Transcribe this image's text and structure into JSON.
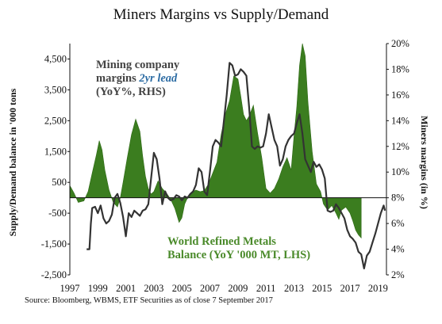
{
  "title": "Miners Margins vs Supply/Demand",
  "source": "Source: Bloomberg, WBMS, ETF Securities as of close 7 September 2017",
  "chart_data": {
    "type": "area",
    "title": "Miners Margins vs Supply/Demand",
    "x_ticks": [
      "1997",
      "1999",
      "2001",
      "2003",
      "2005",
      "2007",
      "2009",
      "2011",
      "2013",
      "2015",
      "2017",
      "2019"
    ],
    "xlim": [
      1997.0,
      2019.6
    ],
    "y_left": {
      "label": "Supply/Demand balance in '000 tons",
      "ticks": [
        "4,500",
        "3,500",
        "2,500",
        "1,500",
        "500",
        "-500",
        "-1,500",
        "-2,500"
      ],
      "ylim": [
        -2500,
        5000
      ]
    },
    "y_right": {
      "label": "Miners margins (in %)",
      "ticks": [
        "20%",
        "18%",
        "16%",
        "14%",
        "12%",
        "10%",
        "8%",
        "6%",
        "4%",
        "2%"
      ],
      "ylim": [
        2,
        20
      ]
    },
    "annotations": {
      "margins_line1": "Mining company",
      "margins_line2a": "margins ",
      "margins_line2b": "2yr lead",
      "margins_line3": "(YoY%, RHS)",
      "balance_line1": "World Refined Metals",
      "balance_line2": "Balance (YoY '000 MT, LHS)"
    },
    "colors": {
      "area": "#3b7d1f",
      "line": "#333333",
      "lead_text": "#2e6da4",
      "balance_text": "#4a8a2a"
    },
    "series": [
      {
        "axis": "left",
        "type": "area",
        "x": [
          1997.0,
          1997.3,
          1997.6,
          1998.0,
          1998.3,
          1998.6,
          1998.9,
          1999.1,
          1999.3,
          1999.5,
          1999.8,
          2000.1,
          2000.4,
          2000.6,
          2000.8,
          2001.1,
          2001.4,
          2001.7,
          2002.0,
          2002.2,
          2002.4,
          2002.6,
          2002.8,
          2003.0,
          2003.3,
          2003.6,
          2003.9,
          2004.2,
          2004.5,
          2004.8,
          2005.0,
          2005.2,
          2005.4,
          2005.7,
          2006.0,
          2006.3,
          2006.6,
          2006.9,
          2007.2,
          2007.5,
          2007.8,
          2008.1,
          2008.4,
          2008.7,
          2009.0,
          2009.2,
          2009.4,
          2009.6,
          2009.8,
          2010.1,
          2010.4,
          2010.7,
          2011.0,
          2011.3,
          2011.6,
          2011.9,
          2012.2,
          2012.5,
          2012.8,
          2013.0,
          2013.2,
          2013.4,
          2013.6,
          2013.8,
          2014.0,
          2014.3,
          2014.6,
          2014.9,
          2015.1,
          2015.4,
          2015.7,
          2016.0,
          2016.2,
          2016.4,
          2016.7,
          2017.0,
          2017.2,
          2017.4,
          2017.6,
          2017.8
        ],
        "y": [
          400,
          150,
          -150,
          -100,
          200,
          800,
          1400,
          1850,
          1550,
          900,
          250,
          -150,
          -300,
          0,
          500,
          1300,
          2050,
          2550,
          2150,
          1350,
          700,
          300,
          120,
          200,
          550,
          300,
          150,
          -50,
          -350,
          -800,
          -650,
          -200,
          0,
          180,
          250,
          200,
          230,
          450,
          800,
          1150,
          2050,
          2700,
          3150,
          3950,
          3850,
          3300,
          2700,
          2500,
          2650,
          3000,
          2100,
          1300,
          300,
          150,
          300,
          600,
          1000,
          1300,
          900,
          2000,
          2950,
          4300,
          5000,
          4600,
          3100,
          1500,
          450,
          200,
          -200,
          -400,
          -250,
          -500,
          -700,
          -400,
          -300,
          -500,
          -750,
          -1050,
          -1200,
          -1300
        ]
      },
      {
        "axis": "right",
        "type": "line",
        "x": [
          1998.2,
          1998.4,
          1998.5,
          1998.6,
          1998.8,
          1999.0,
          1999.2,
          1999.4,
          1999.6,
          1999.8,
          2000.0,
          2000.2,
          2000.4,
          2000.6,
          2000.8,
          2001.0,
          2001.2,
          2001.4,
          2001.6,
          2001.8,
          2002.0,
          2002.2,
          2002.4,
          2002.6,
          2002.8,
          2003.0,
          2003.2,
          2003.4,
          2003.6,
          2003.8,
          2004.0,
          2004.2,
          2004.4,
          2004.6,
          2004.8,
          2005.0,
          2005.2,
          2005.4,
          2005.6,
          2005.8,
          2006.0,
          2006.2,
          2006.4,
          2006.6,
          2006.8,
          2007.0,
          2007.2,
          2007.4,
          2007.6,
          2007.8,
          2008.0,
          2008.2,
          2008.4,
          2008.6,
          2008.8,
          2009.0,
          2009.2,
          2009.4,
          2009.6,
          2009.8,
          2010.0,
          2010.2,
          2010.4,
          2010.6,
          2010.8,
          2011.0,
          2011.2,
          2011.4,
          2011.6,
          2011.8,
          2012.0,
          2012.2,
          2012.4,
          2012.6,
          2012.8,
          2013.0,
          2013.2,
          2013.4,
          2013.6,
          2013.8,
          2014.0,
          2014.2,
          2014.4,
          2014.6,
          2014.8,
          2015.0,
          2015.2,
          2015.4,
          2015.6,
          2015.8,
          2016.0,
          2016.2,
          2016.4,
          2016.6,
          2016.8,
          2017.0,
          2017.2,
          2017.4,
          2017.6,
          2017.8,
          2018.0,
          2018.2,
          2018.4,
          2018.6,
          2018.8,
          2019.0,
          2019.2,
          2019.4,
          2019.5
        ],
        "y": [
          4.0,
          4.0,
          6.0,
          7.2,
          7.3,
          6.8,
          7.4,
          6.4,
          6.0,
          6.2,
          6.7,
          8.0,
          8.3,
          7.6,
          6.5,
          5.0,
          6.8,
          6.5,
          7.0,
          6.8,
          6.6,
          7.0,
          7.1,
          7.5,
          9.5,
          11.5,
          11.0,
          9.5,
          7.5,
          8.5,
          8.0,
          7.8,
          7.9,
          8.2,
          8.1,
          7.8,
          8.1,
          8.0,
          8.3,
          8.5,
          9.0,
          10.3,
          10.0,
          8.5,
          8.2,
          10.0,
          12.0,
          12.5,
          12.3,
          12.0,
          14.0,
          16.0,
          18.5,
          18.3,
          17.5,
          17.6,
          18.0,
          17.8,
          17.5,
          15.0,
          12.0,
          11.8,
          12.0,
          11.9,
          12.0,
          13.0,
          14.5,
          13.5,
          12.5,
          12.0,
          10.5,
          11.0,
          12.0,
          12.5,
          12.8,
          13.0,
          13.8,
          14.5,
          13.0,
          11.0,
          10.5,
          10.0,
          10.8,
          10.4,
          10.6,
          10.2,
          9.5,
          7.0,
          6.9,
          7.0,
          7.5,
          7.2,
          6.8,
          6.4,
          5.5,
          5.0,
          4.8,
          4.5,
          3.8,
          3.6,
          2.5,
          3.5,
          3.8,
          4.5,
          5.2,
          6.0,
          6.8,
          7.4,
          7.0
        ]
      }
    ]
  }
}
